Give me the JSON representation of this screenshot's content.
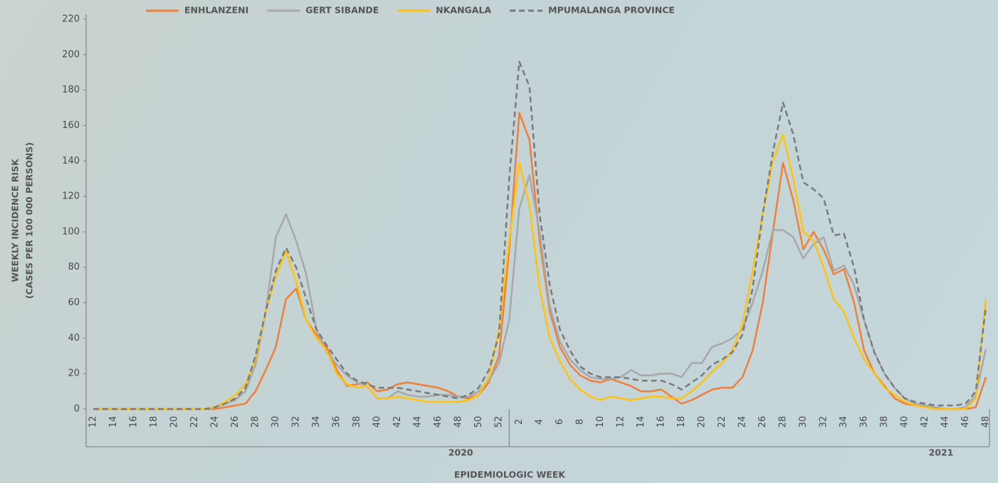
{
  "chart_data": {
    "type": "line",
    "ylabel": [
      "WEEKLY INCIDENCE RISK",
      "(CASES PER 100 000 PERSONS)"
    ],
    "xlabel": "EPIDEMIOLOGIC WEEK",
    "x_groups": [
      "2020",
      "2021"
    ],
    "categories": [
      12,
      null,
      14,
      null,
      16,
      null,
      18,
      null,
      20,
      null,
      22,
      null,
      24,
      null,
      26,
      null,
      28,
      null,
      30,
      null,
      32,
      null,
      34,
      null,
      36,
      null,
      38,
      null,
      40,
      null,
      42,
      null,
      44,
      null,
      46,
      null,
      48,
      null,
      50,
      null,
      52,
      null,
      2,
      null,
      4,
      null,
      6,
      null,
      8,
      null,
      10,
      null,
      12,
      null,
      14,
      null,
      16,
      null,
      18,
      null,
      20,
      null,
      22,
      null,
      24,
      null,
      26,
      null,
      28,
      null,
      30,
      null,
      32,
      null,
      34,
      null,
      36,
      null,
      38,
      null,
      40,
      null,
      42,
      null,
      44,
      null,
      46,
      null,
      48
    ],
    "ylim": [
      0,
      220
    ],
    "yticks": [
      0,
      20,
      40,
      60,
      80,
      100,
      120,
      140,
      160,
      180,
      200,
      220
    ],
    "series": [
      {
        "name": "ENHLANZENI",
        "color": "#ef7f3a",
        "dashed": false,
        "values": [
          0,
          0,
          0,
          0,
          0,
          0,
          0,
          0,
          0,
          0,
          0,
          0,
          0,
          1,
          2,
          3,
          10,
          22,
          35,
          62,
          68,
          50,
          42,
          35,
          22,
          13,
          14,
          15,
          10,
          11,
          14,
          15,
          14,
          13,
          12,
          10,
          7,
          6,
          8,
          15,
          30,
          90,
          167,
          152,
          95,
          55,
          35,
          25,
          19,
          16,
          15,
          17,
          15,
          13,
          10,
          10,
          11,
          7,
          3,
          5,
          8,
          11,
          12,
          12,
          18,
          33,
          60,
          100,
          139,
          118,
          90,
          100,
          90,
          76,
          79,
          60,
          33,
          20,
          13,
          6,
          3,
          2,
          1,
          0,
          0,
          0,
          0,
          1,
          18
        ]
      },
      {
        "name": "GERT SIBANDE",
        "color": "#a8a8a8",
        "dashed": false,
        "values": [
          0,
          0,
          0,
          0,
          0,
          0,
          0,
          0,
          0,
          0,
          0,
          0,
          1,
          3,
          5,
          10,
          25,
          55,
          97,
          110,
          95,
          76,
          45,
          32,
          25,
          19,
          15,
          13,
          6,
          6,
          10,
          8,
          7,
          7,
          8,
          8,
          7,
          7,
          10,
          16,
          26,
          50,
          113,
          132,
          100,
          58,
          38,
          28,
          22,
          18,
          17,
          17,
          18,
          22,
          19,
          19,
          20,
          20,
          18,
          26,
          26,
          35,
          37,
          40,
          45,
          60,
          78,
          101,
          101,
          97,
          85,
          93,
          97,
          78,
          81,
          70,
          50,
          32,
          20,
          12,
          6,
          3,
          2,
          1,
          0,
          0,
          1,
          8,
          34
        ]
      },
      {
        "name": "NKANGALA",
        "color": "#ffc20e",
        "dashed": false,
        "values": [
          0,
          0,
          0,
          0,
          0,
          0,
          0,
          0,
          0,
          0,
          0,
          0,
          1,
          4,
          8,
          14,
          28,
          55,
          75,
          89,
          72,
          50,
          40,
          33,
          20,
          14,
          12,
          13,
          6,
          6,
          7,
          6,
          5,
          4,
          4,
          4,
          4,
          5,
          8,
          18,
          45,
          95,
          139,
          115,
          68,
          40,
          27,
          17,
          11,
          7,
          5,
          7,
          6,
          5,
          6,
          7,
          7,
          6,
          6,
          10,
          15,
          21,
          26,
          33,
          48,
          78,
          110,
          140,
          155,
          130,
          100,
          95,
          80,
          62,
          55,
          40,
          28,
          20,
          12,
          8,
          4,
          2,
          1,
          0,
          0,
          0,
          0,
          6,
          62
        ]
      },
      {
        "name": "MPUMALANGA PROVINCE",
        "color": "#7a7a7a",
        "dashed": true,
        "values": [
          0,
          0,
          0,
          0,
          0,
          0,
          0,
          0,
          0,
          0,
          0,
          0,
          1,
          3,
          6,
          12,
          30,
          55,
          78,
          91,
          80,
          62,
          45,
          36,
          28,
          20,
          16,
          14,
          12,
          12,
          12,
          11,
          10,
          9,
          8,
          7,
          6,
          8,
          12,
          22,
          42,
          130,
          196,
          182,
          110,
          70,
          45,
          33,
          24,
          20,
          18,
          18,
          18,
          17,
          16,
          16,
          16,
          14,
          11,
          15,
          19,
          25,
          28,
          32,
          42,
          68,
          110,
          145,
          173,
          155,
          128,
          124,
          119,
          98,
          99,
          80,
          50,
          32,
          20,
          12,
          6,
          4,
          3,
          2,
          2,
          2,
          3,
          10,
          58
        ]
      }
    ]
  }
}
